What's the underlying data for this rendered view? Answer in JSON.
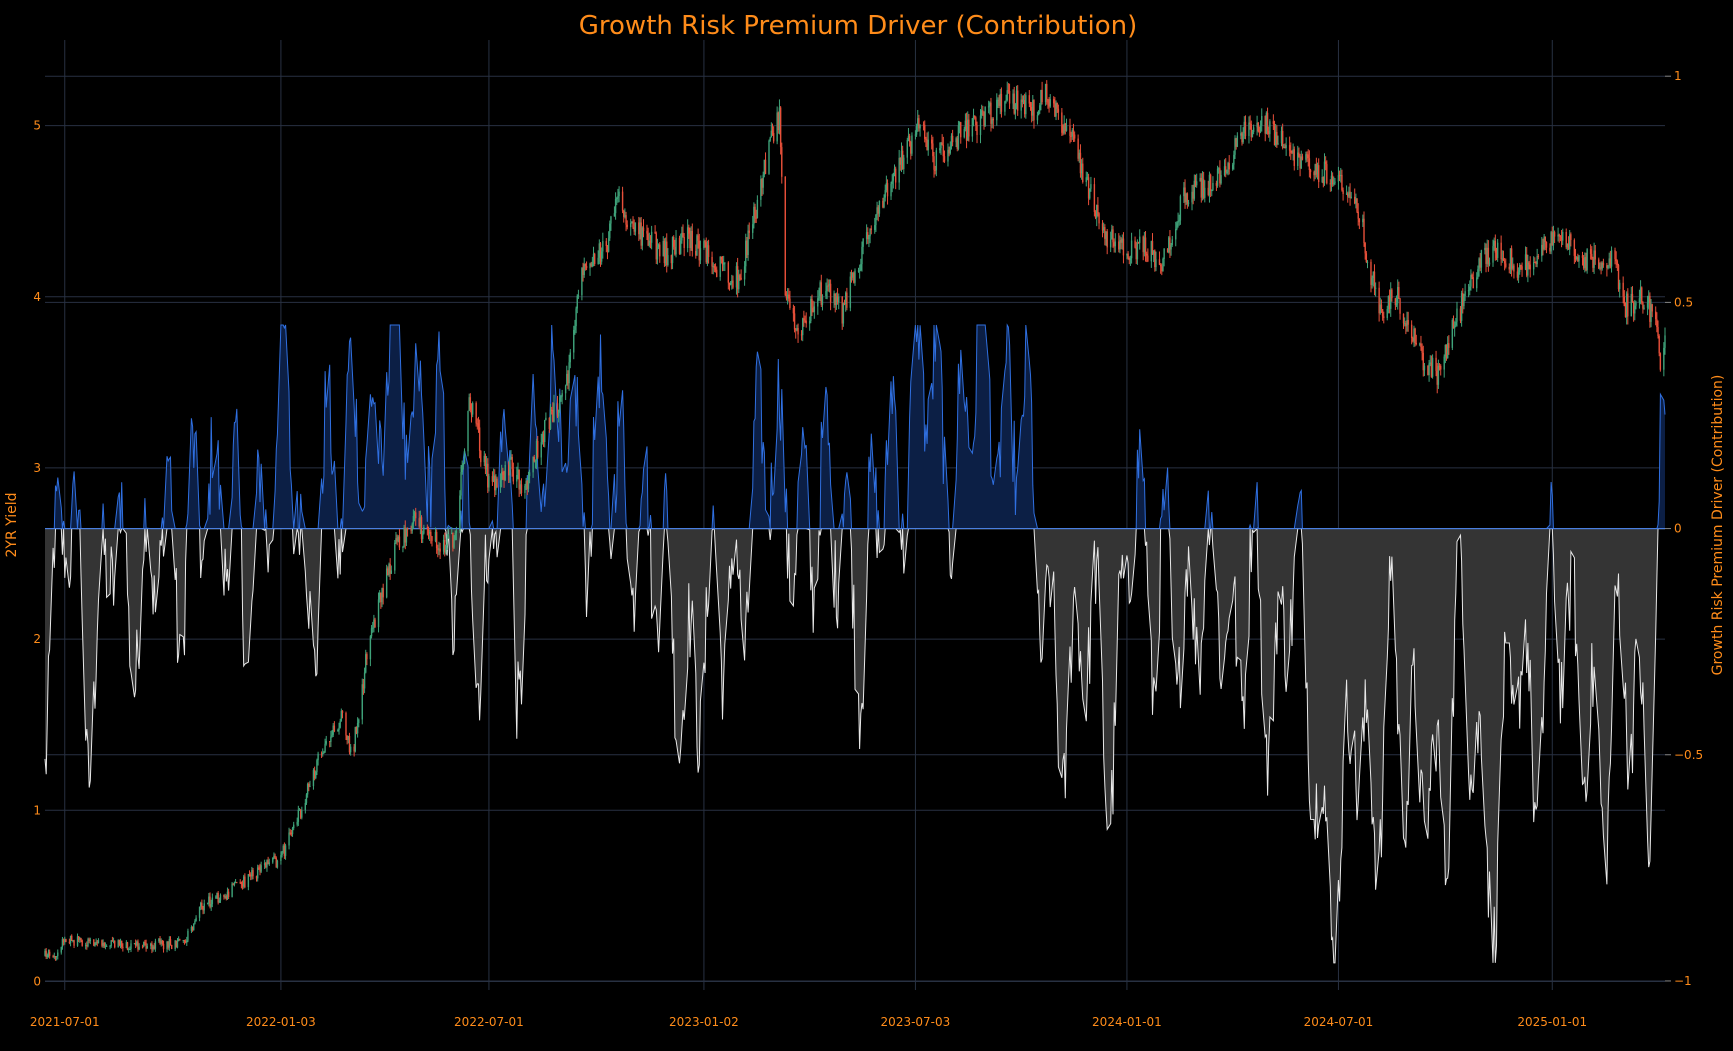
{
  "chart_data": {
    "type": "candlestick+area",
    "title": "Growth Risk Premium Driver (Contribution)",
    "ylabel": "2YR Yield",
    "y2label": "Growth Risk Premium Driver (Contribution)",
    "x_range": [
      "2021-06-14",
      "2025-04-08"
    ],
    "ylim": [
      -0.05,
      5.5
    ],
    "y2lim": [
      -1.02,
      1.08
    ],
    "x_ticks": [
      "2021-07-01",
      "2022-01-03",
      "2022-07-01",
      "2023-01-02",
      "2023-07-03",
      "2024-01-01",
      "2024-07-01",
      "2025-01-01"
    ],
    "y_ticks": [
      0,
      1,
      2,
      3,
      4,
      5
    ],
    "y2_ticks": [
      1,
      0.5,
      0,
      -0.5,
      -1
    ],
    "y2_tick_labels": [
      "1",
      "0.5",
      "0",
      "−0.5",
      "−1"
    ],
    "grid": true,
    "colors": {
      "background": "#000000",
      "grid": "#283142",
      "text": "#ff8c1a",
      "candle_up": "#3fa37a",
      "candle_down": "#e8503a",
      "positive_line": "#2f6fe0",
      "positive_fill": "#0c1f45",
      "negative_line": "#e8e8e8",
      "negative_fill": "#343434",
      "zero_line": "#4a7fe0"
    },
    "yield_anchors": [
      [
        "2021-06-14",
        0.15
      ],
      [
        "2021-06-25",
        0.16
      ],
      [
        "2021-07-01",
        0.25
      ],
      [
        "2021-07-20",
        0.22
      ],
      [
        "2021-08-15",
        0.21
      ],
      [
        "2021-09-10",
        0.22
      ],
      [
        "2021-10-10",
        0.22
      ],
      [
        "2021-10-28",
        0.45
      ],
      [
        "2021-11-15",
        0.5
      ],
      [
        "2021-12-15",
        0.65
      ],
      [
        "2022-01-03",
        0.72
      ],
      [
        "2022-01-20",
        1.0
      ],
      [
        "2022-02-10",
        1.4
      ],
      [
        "2022-02-25",
        1.55
      ],
      [
        "2022-03-05",
        1.3
      ],
      [
        "2022-03-20",
        2.0
      ],
      [
        "2022-04-10",
        2.5
      ],
      [
        "2022-04-25",
        2.7
      ],
      [
        "2022-05-10",
        2.6
      ],
      [
        "2022-06-01",
        2.55
      ],
      [
        "2022-06-14",
        3.4
      ],
      [
        "2022-07-01",
        2.9
      ],
      [
        "2022-07-20",
        3.0
      ],
      [
        "2022-08-01",
        2.9
      ],
      [
        "2022-08-20",
        3.25
      ],
      [
        "2022-09-05",
        3.45
      ],
      [
        "2022-09-20",
        4.2
      ],
      [
        "2022-10-10",
        4.3
      ],
      [
        "2022-10-20",
        4.55
      ],
      [
        "2022-11-10",
        4.35
      ],
      [
        "2022-12-01",
        4.25
      ],
      [
        "2022-12-20",
        4.35
      ],
      [
        "2023-01-10",
        4.2
      ],
      [
        "2023-02-01",
        4.1
      ],
      [
        "2023-03-01",
        4.9
      ],
      [
        "2023-03-08",
        5.05
      ],
      [
        "2023-03-13",
        4.0
      ],
      [
        "2023-03-24",
        3.8
      ],
      [
        "2023-04-15",
        4.05
      ],
      [
        "2023-05-01",
        3.9
      ],
      [
        "2023-05-20",
        4.3
      ],
      [
        "2023-06-15",
        4.7
      ],
      [
        "2023-07-06",
        5.0
      ],
      [
        "2023-07-20",
        4.8
      ],
      [
        "2023-08-10",
        4.95
      ],
      [
        "2023-08-25",
        5.0
      ],
      [
        "2023-09-20",
        5.15
      ],
      [
        "2023-10-15",
        5.1
      ],
      [
        "2023-10-25",
        5.2
      ],
      [
        "2023-11-15",
        4.9
      ],
      [
        "2023-12-01",
        4.6
      ],
      [
        "2023-12-15",
        4.35
      ],
      [
        "2024-01-01",
        4.25
      ],
      [
        "2024-01-15",
        4.3
      ],
      [
        "2024-02-01",
        4.2
      ],
      [
        "2024-02-20",
        4.6
      ],
      [
        "2024-03-15",
        4.65
      ],
      [
        "2024-04-10",
        4.95
      ],
      [
        "2024-04-30",
        5.0
      ],
      [
        "2024-05-20",
        4.85
      ],
      [
        "2024-06-10",
        4.75
      ],
      [
        "2024-07-01",
        4.7
      ],
      [
        "2024-07-20",
        4.45
      ],
      [
        "2024-08-05",
        3.9
      ],
      [
        "2024-08-20",
        4.0
      ],
      [
        "2024-09-10",
        3.65
      ],
      [
        "2024-09-25",
        3.55
      ],
      [
        "2024-10-15",
        3.95
      ],
      [
        "2024-11-01",
        4.2
      ],
      [
        "2024-11-15",
        4.3
      ],
      [
        "2024-12-05",
        4.15
      ],
      [
        "2024-12-25",
        4.3
      ],
      [
        "2025-01-10",
        4.35
      ],
      [
        "2025-02-01",
        4.2
      ],
      [
        "2025-02-20",
        4.25
      ],
      [
        "2025-03-05",
        3.95
      ],
      [
        "2025-03-20",
        4.0
      ],
      [
        "2025-04-01",
        3.85
      ],
      [
        "2025-04-04",
        3.55
      ],
      [
        "2025-04-08",
        3.75
      ]
    ],
    "contribution_anchors": [
      [
        "2021-06-14",
        -0.25
      ],
      [
        "2021-07-01",
        0.05
      ],
      [
        "2021-07-20",
        -0.4
      ],
      [
        "2021-08-10",
        0.1
      ],
      [
        "2021-08-25",
        -0.35
      ],
      [
        "2021-09-20",
        0.15
      ],
      [
        "2021-10-10",
        -0.3
      ],
      [
        "2021-10-25",
        0.2
      ],
      [
        "2021-11-10",
        0.1
      ],
      [
        "2021-12-01",
        -0.2
      ],
      [
        "2021-12-20",
        0.15
      ],
      [
        "2022-01-10",
        0.2
      ],
      [
        "2022-01-25",
        -0.15
      ],
      [
        "2022-02-10",
        0.15
      ],
      [
        "2022-02-25",
        -0.05
      ],
      [
        "2022-03-10",
        0.35
      ],
      [
        "2022-03-25",
        0.2
      ],
      [
        "2022-04-10",
        0.38
      ],
      [
        "2022-04-25",
        0.25
      ],
      [
        "2022-05-10",
        0.35
      ],
      [
        "2022-05-25",
        -0.05
      ],
      [
        "2022-06-05",
        -0.25
      ],
      [
        "2022-06-15",
        0.25
      ],
      [
        "2022-06-25",
        -0.35
      ],
      [
        "2022-07-10",
        0.15
      ],
      [
        "2022-07-25",
        -0.2
      ],
      [
        "2022-08-10",
        0.25
      ],
      [
        "2022-08-25",
        0.1
      ],
      [
        "2022-09-10",
        0.25
      ],
      [
        "2022-09-25",
        0.15
      ],
      [
        "2022-10-15",
        0.05
      ],
      [
        "2022-11-05",
        0.15
      ],
      [
        "2022-11-25",
        -0.2
      ],
      [
        "2022-12-15",
        -0.25
      ],
      [
        "2023-01-05",
        -0.3
      ],
      [
        "2023-01-20",
        -0.2
      ],
      [
        "2023-02-10",
        0.05
      ],
      [
        "2023-03-01",
        0.1
      ],
      [
        "2023-03-20",
        0.15
      ],
      [
        "2023-04-10",
        -0.1
      ],
      [
        "2023-05-01",
        0.15
      ],
      [
        "2023-05-20",
        -0.3
      ],
      [
        "2023-06-10",
        0.2
      ],
      [
        "2023-06-25",
        0.25
      ],
      [
        "2023-07-10",
        0.28
      ],
      [
        "2023-07-25",
        0.2
      ],
      [
        "2023-08-10",
        0.25
      ],
      [
        "2023-08-25",
        0.3
      ],
      [
        "2023-09-10",
        0.25
      ],
      [
        "2023-09-25",
        0.35
      ],
      [
        "2023-10-05",
        0.2
      ],
      [
        "2023-10-15",
        -0.15
      ],
      [
        "2023-10-30",
        -0.25
      ],
      [
        "2023-11-15",
        -0.35
      ],
      [
        "2023-12-01",
        -0.3
      ],
      [
        "2023-12-20",
        -0.4
      ],
      [
        "2024-01-05",
        0.05
      ],
      [
        "2024-01-20",
        -0.25
      ],
      [
        "2024-02-05",
        0.05
      ],
      [
        "2024-02-20",
        -0.35
      ],
      [
        "2024-03-05",
        -0.2
      ],
      [
        "2024-03-20",
        0.05
      ],
      [
        "2024-04-05",
        -0.4
      ],
      [
        "2024-04-20",
        -0.15
      ],
      [
        "2024-05-05",
        -0.3
      ],
      [
        "2024-05-20",
        -0.1
      ],
      [
        "2024-06-05",
        -0.4
      ],
      [
        "2024-06-20",
        -0.65
      ],
      [
        "2024-07-05",
        -0.75
      ],
      [
        "2024-07-15",
        -0.5
      ],
      [
        "2024-07-30",
        -0.6
      ],
      [
        "2024-08-15",
        -0.2
      ],
      [
        "2024-08-30",
        -0.7
      ],
      [
        "2024-09-15",
        -0.4
      ],
      [
        "2024-09-30",
        -0.6
      ],
      [
        "2024-10-15",
        -0.3
      ],
      [
        "2024-10-30",
        -0.5
      ],
      [
        "2024-11-15",
        -0.7
      ],
      [
        "2024-12-01",
        -0.35
      ],
      [
        "2024-12-15",
        -0.45
      ],
      [
        "2025-01-01",
        -0.1
      ],
      [
        "2025-01-15",
        -0.4
      ],
      [
        "2025-02-01",
        -0.3
      ],
      [
        "2025-02-15",
        -0.55
      ],
      [
        "2025-03-01",
        -0.4
      ],
      [
        "2025-03-15",
        -0.35
      ],
      [
        "2025-03-25",
        -0.5
      ],
      [
        "2025-04-03",
        0.05
      ],
      [
        "2025-04-08",
        0.1
      ]
    ]
  }
}
